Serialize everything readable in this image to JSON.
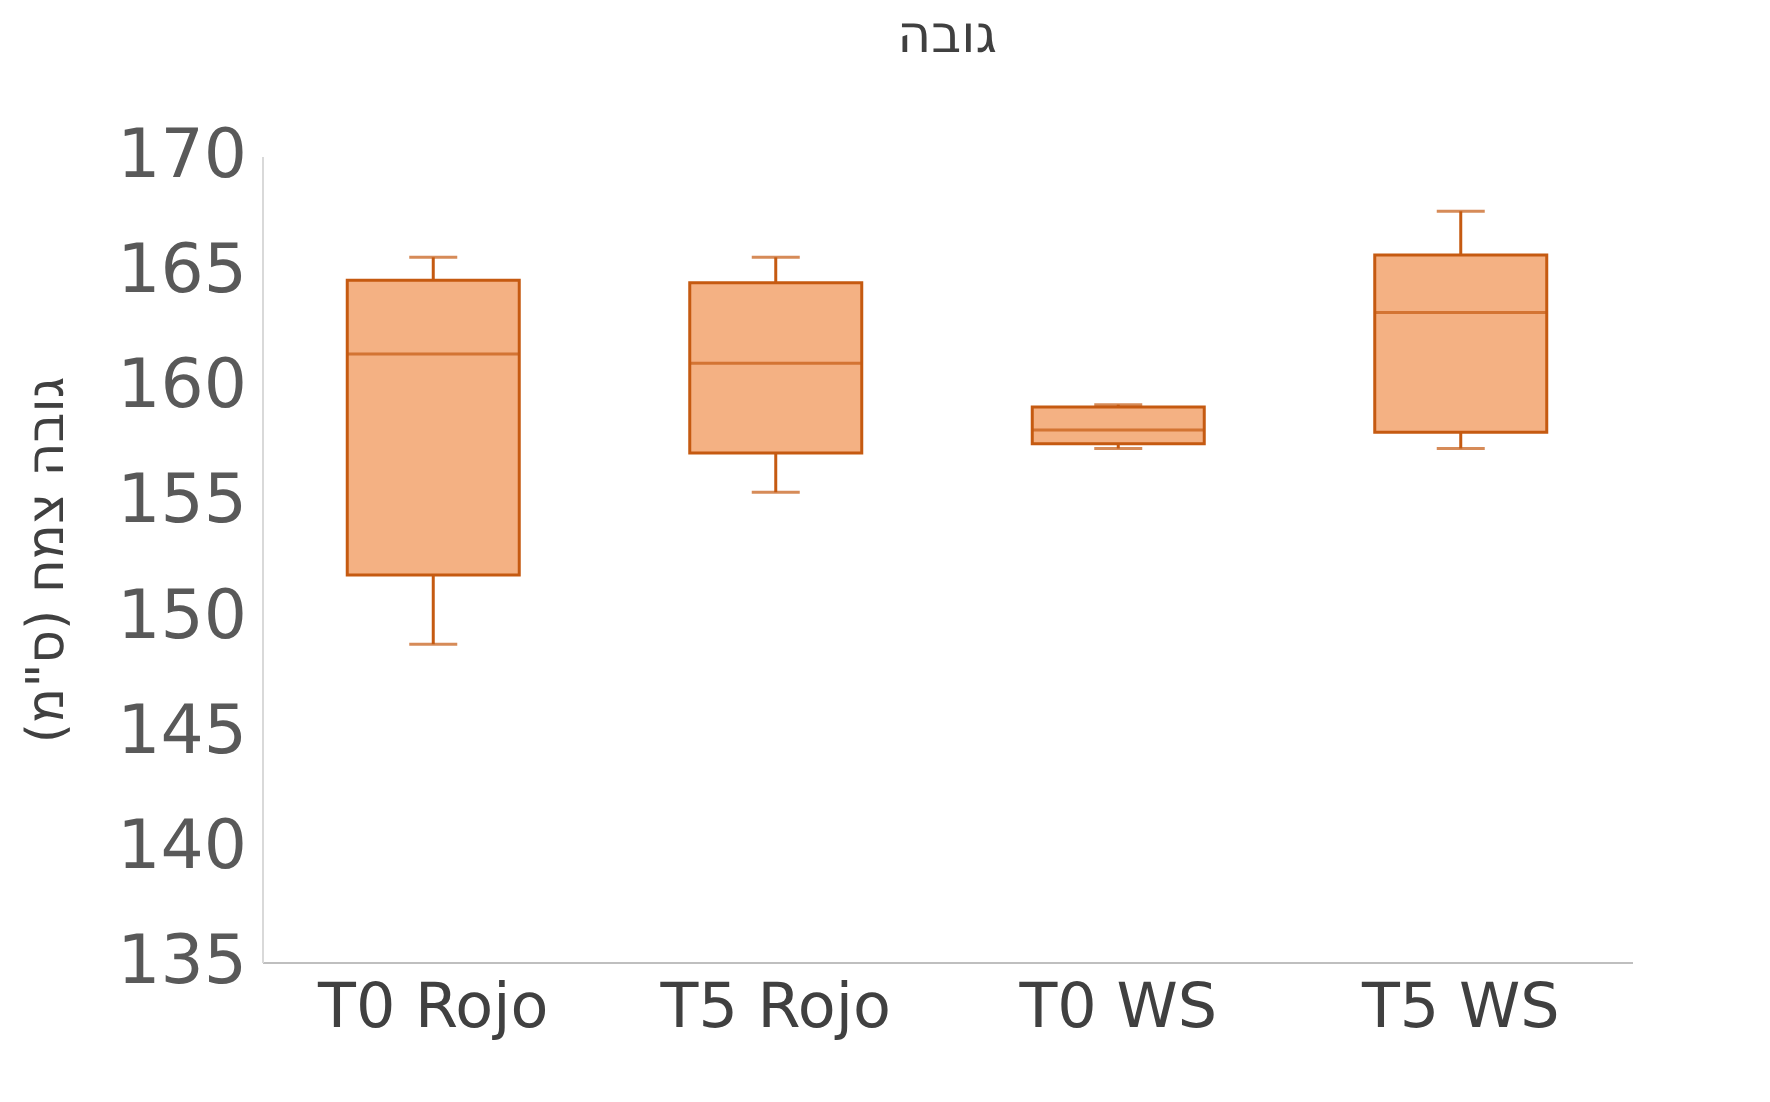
{
  "chart_data": {
    "type": "box",
    "title": "גובה",
    "ylabel": "גובה צמח (ס\"מ)",
    "categories": [
      "T0 Rojo",
      "T5 Rojo",
      "T0 WS",
      "T5 WS"
    ],
    "series": [
      {
        "color": "#f4b183",
        "boxes": [
          {
            "low": 148.8,
            "q1": 151.8,
            "median": 161.4,
            "q3": 164.6,
            "high": 165.6
          },
          {
            "low": 155.4,
            "q1": 157.1,
            "median": 161.0,
            "q3": 164.5,
            "high": 165.6
          },
          {
            "low": 157.3,
            "q1": 157.5,
            "median": 158.1,
            "q3": 159.1,
            "high": 159.2
          },
          {
            "low": 157.3,
            "q1": 158.0,
            "median": 163.2,
            "q3": 165.7,
            "high": 167.6
          }
        ]
      }
    ],
    "ylim": [
      135,
      170
    ],
    "yticks": [
      135,
      140,
      145,
      150,
      155,
      160,
      165,
      170
    ]
  }
}
